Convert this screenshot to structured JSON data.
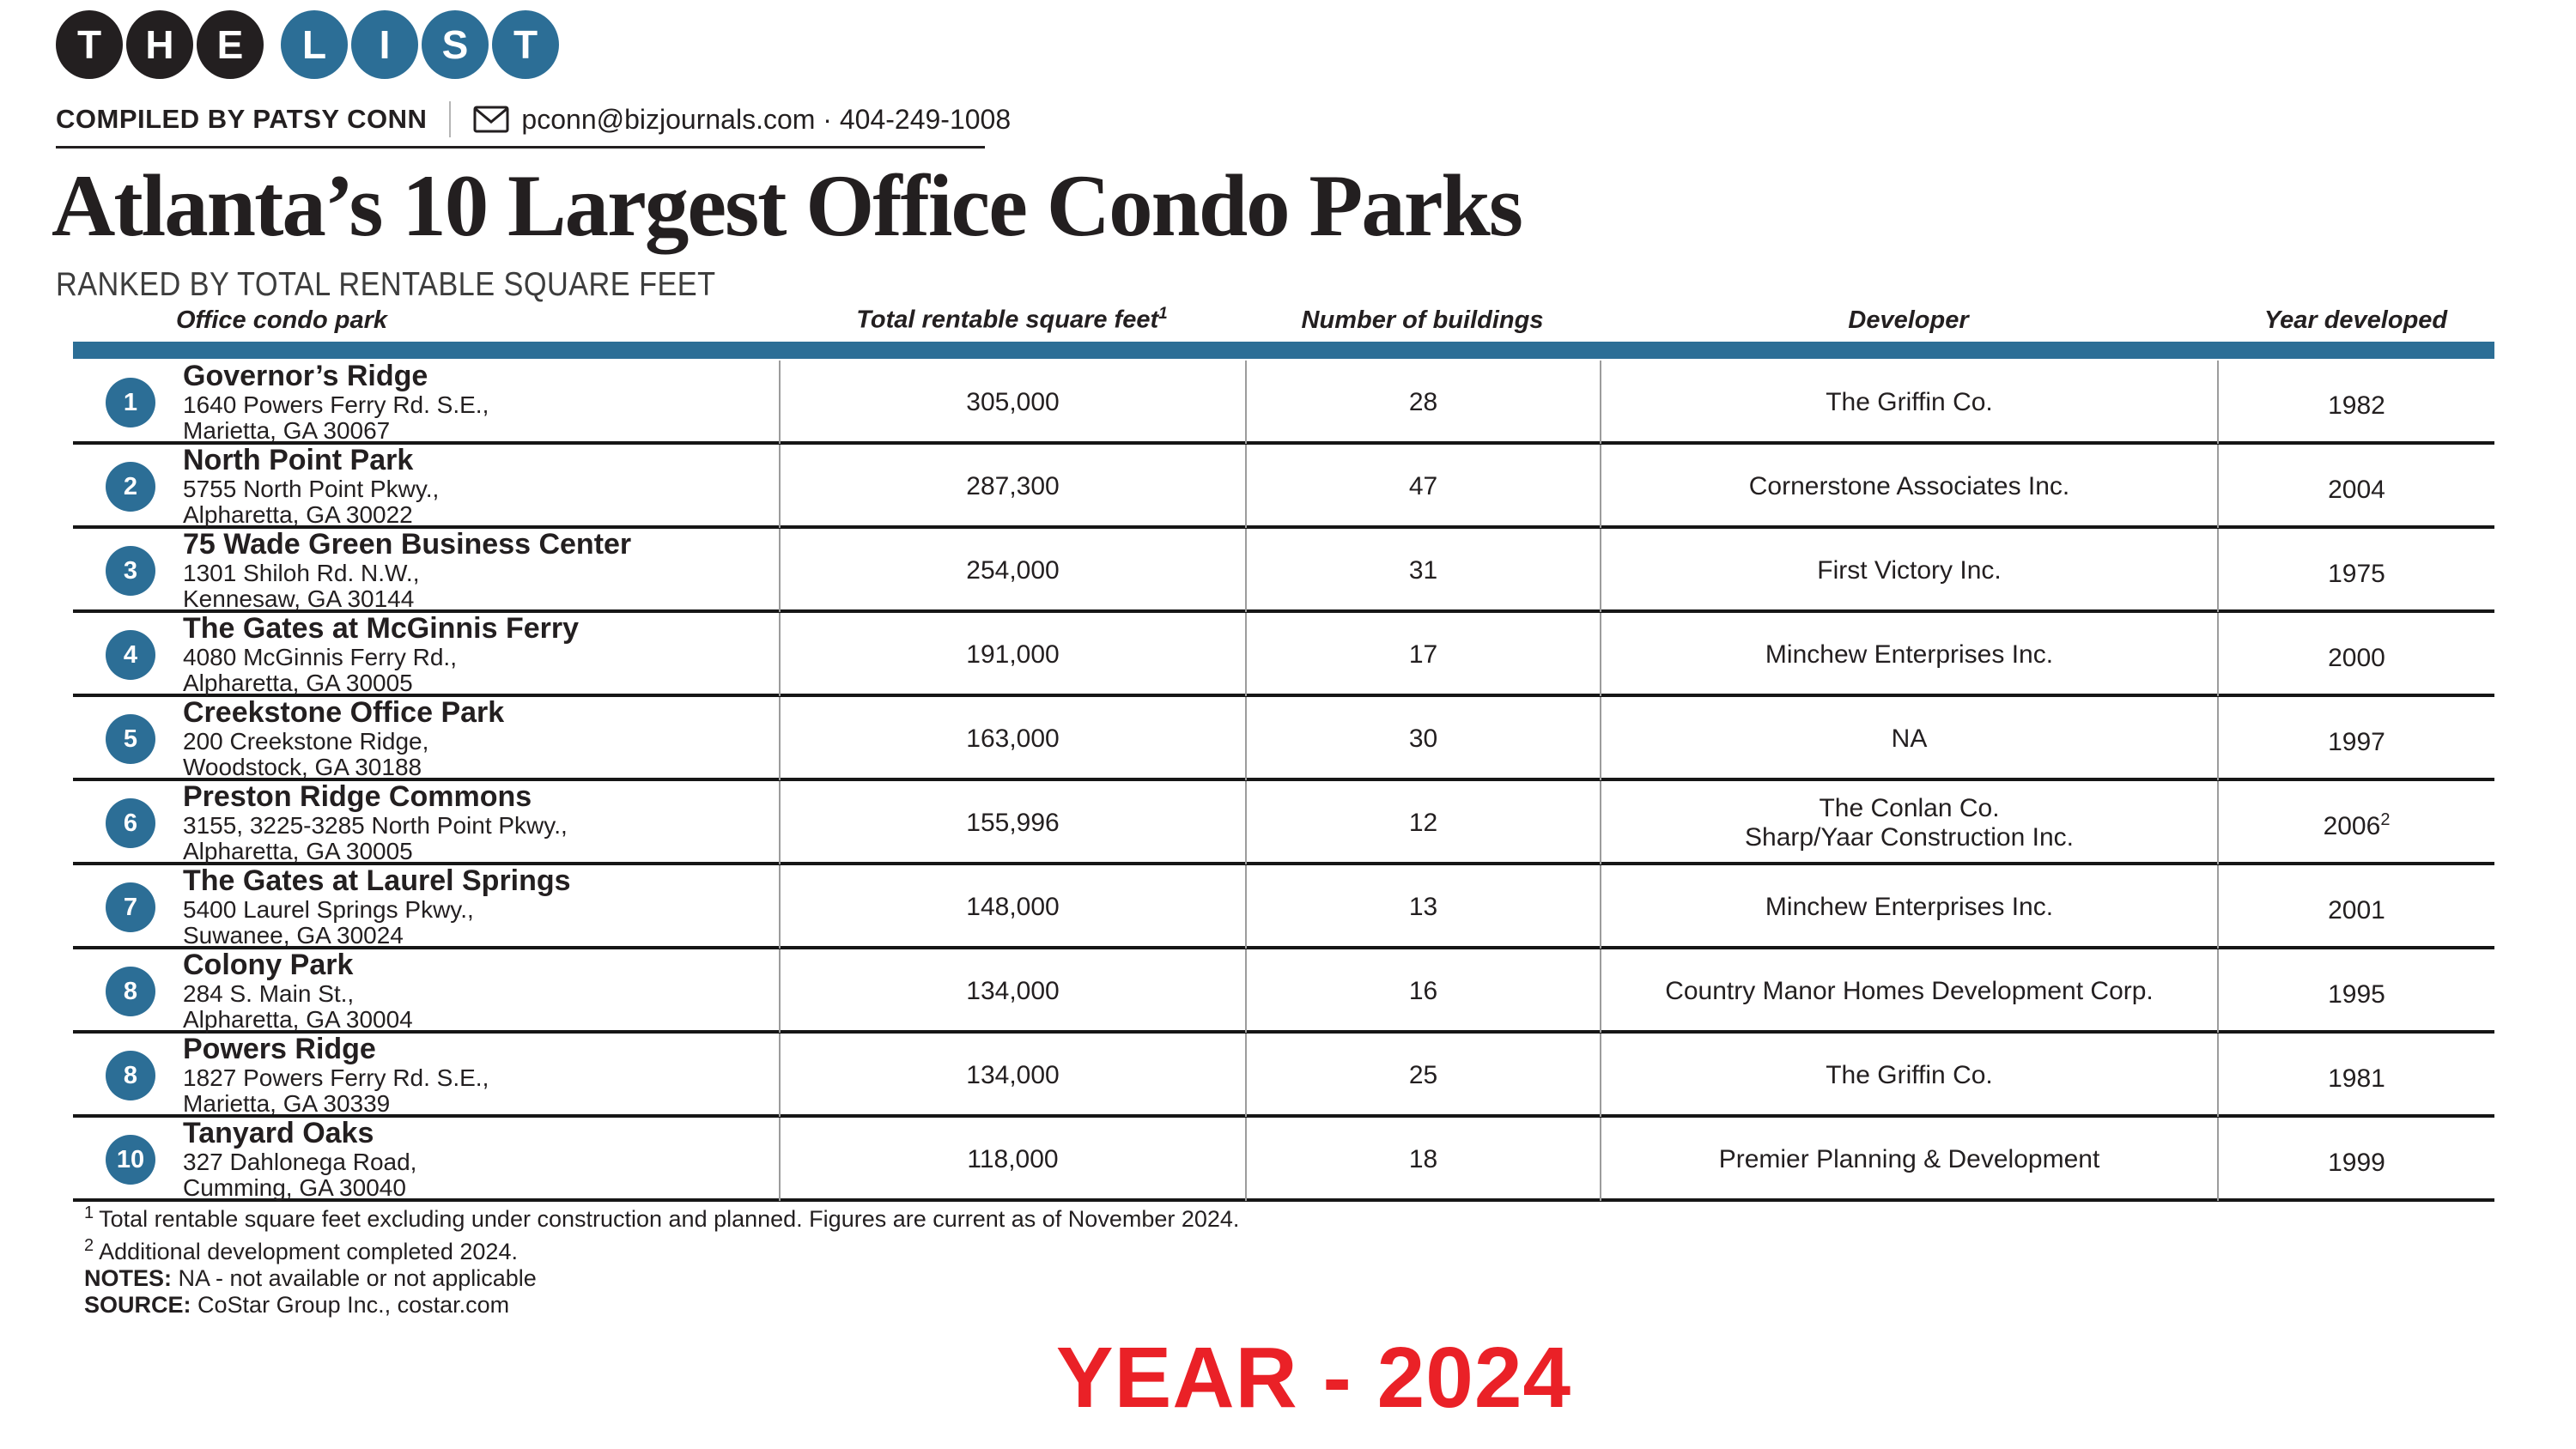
{
  "logo": {
    "letters": [
      {
        "ch": "T",
        "bg": "#231f20"
      },
      {
        "ch": "H",
        "bg": "#231f20"
      },
      {
        "ch": "E",
        "bg": "#231f20"
      },
      {
        "ch": "L",
        "bg": "#2c6e96"
      },
      {
        "ch": "I",
        "bg": "#2c6e96"
      },
      {
        "ch": "S",
        "bg": "#2c6e96"
      },
      {
        "ch": "T",
        "bg": "#2c6e96"
      }
    ]
  },
  "byline": {
    "compiled_by": "COMPILED BY PATSY CONN",
    "contact": "pconn@bizjournals.com · 404-249-1008"
  },
  "header": {
    "title": "Atlanta’s 10 Largest Office Condo Parks",
    "subtitle": "RANKED BY TOTAL RENTABLE SQUARE FEET"
  },
  "table": {
    "columns": {
      "park": "Office condo park",
      "sqft": "Total rentable square feet",
      "sqft_sup": "1",
      "buildings": "Number of buildings",
      "developer": "Developer",
      "year": "Year developed"
    },
    "rows": [
      {
        "rank": "1",
        "name": "Governor’s Ridge",
        "addr1": "1640 Powers Ferry Rd. S.E.,",
        "addr2": "Marietta, GA 30067",
        "sqft": "305,000",
        "buildings": "28",
        "dev1": "The Griffin Co.",
        "dev2": "",
        "year": "1982",
        "year_sup": ""
      },
      {
        "rank": "2",
        "name": "North Point Park",
        "addr1": "5755 North Point Pkwy.,",
        "addr2": "Alpharetta, GA 30022",
        "sqft": "287,300",
        "buildings": "47",
        "dev1": "Cornerstone Associates Inc.",
        "dev2": "",
        "year": "2004",
        "year_sup": ""
      },
      {
        "rank": "3",
        "name": "75 Wade Green Business Center",
        "addr1": "1301 Shiloh Rd. N.W.,",
        "addr2": "Kennesaw, GA 30144",
        "sqft": "254,000",
        "buildings": "31",
        "dev1": "First Victory Inc.",
        "dev2": "",
        "year": "1975",
        "year_sup": ""
      },
      {
        "rank": "4",
        "name": "The Gates at McGinnis Ferry",
        "addr1": "4080 McGinnis Ferry Rd.,",
        "addr2": "Alpharetta, GA 30005",
        "sqft": "191,000",
        "buildings": "17",
        "dev1": "Minchew Enterprises Inc.",
        "dev2": "",
        "year": "2000",
        "year_sup": ""
      },
      {
        "rank": "5",
        "name": "Creekstone Office Park",
        "addr1": "200 Creekstone Ridge,",
        "addr2": "Woodstock, GA 30188",
        "sqft": "163,000",
        "buildings": "30",
        "dev1": "NA",
        "dev2": "",
        "year": "1997",
        "year_sup": ""
      },
      {
        "rank": "6",
        "name": "Preston Ridge Commons",
        "addr1": "3155, 3225-3285 North Point Pkwy.,",
        "addr2": "Alpharetta, GA 30005",
        "sqft": "155,996",
        "buildings": "12",
        "dev1": "The Conlan Co.",
        "dev2": "Sharp/Yaar Construction Inc.",
        "year": "2006",
        "year_sup": "2"
      },
      {
        "rank": "7",
        "name": "The Gates at Laurel Springs",
        "addr1": "5400 Laurel Springs Pkwy.,",
        "addr2": "Suwanee, GA 30024",
        "sqft": "148,000",
        "buildings": "13",
        "dev1": "Minchew Enterprises Inc.",
        "dev2": "",
        "year": "2001",
        "year_sup": ""
      },
      {
        "rank": "8",
        "name": "Colony Park",
        "addr1": "284 S. Main St.,",
        "addr2": "Alpharetta, GA 30004",
        "sqft": "134,000",
        "buildings": "16",
        "dev1": "Country Manor Homes Development Corp.",
        "dev2": "",
        "year": "1995",
        "year_sup": ""
      },
      {
        "rank": "8",
        "name": "Powers Ridge",
        "addr1": "1827 Powers Ferry Rd. S.E.,",
        "addr2": "Marietta, GA 30339",
        "sqft": "134,000",
        "buildings": "25",
        "dev1": "The Griffin Co.",
        "dev2": "",
        "year": "1981",
        "year_sup": ""
      },
      {
        "rank": "10",
        "name": "Tanyard Oaks",
        "addr1": "327 Dahlonega Road,",
        "addr2": "Cumming, GA 30040",
        "sqft": "118,000",
        "buildings": "18",
        "dev1": "Premier Planning & Development",
        "dev2": "",
        "year": "1999",
        "year_sup": ""
      }
    ]
  },
  "footnotes": {
    "fn1_sup": "1",
    "fn1": "Total rentable square feet excluding under construction and planned. Figures are current as of November 2024.",
    "fn2_sup": "2",
    "fn2": "Additional development completed 2024.",
    "notes_label": "NOTES:",
    "notes": "NA - not available or not applicable",
    "source_label": "SOURCE:",
    "source": "CoStar Group Inc., costar.com"
  },
  "stamp": {
    "text": "YEAR - 2024",
    "color": "#ea2127"
  },
  "colors": {
    "accent": "#2c6e96",
    "ink": "#231f20",
    "divider_gray": "#9c9c9c"
  }
}
